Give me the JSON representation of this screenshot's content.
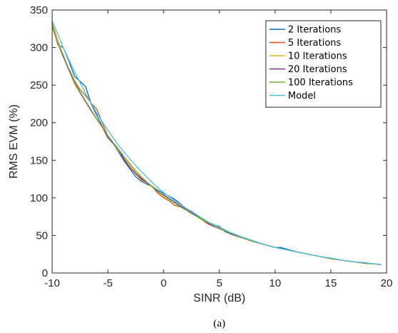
{
  "caption": "(a)",
  "chart_data": {
    "type": "line",
    "xlabel": "SINR (dB)",
    "ylabel": "RMS EVM (%)",
    "xlim": [
      -10,
      20
    ],
    "ylim": [
      0,
      350
    ],
    "xticks": [
      -10,
      -5,
      0,
      5,
      10,
      15,
      20
    ],
    "yticks": [
      0,
      50,
      100,
      150,
      200,
      250,
      300,
      350
    ],
    "xtick_labels": [
      "-10",
      "-5",
      "0",
      "5",
      "10",
      "15",
      "20"
    ],
    "ytick_labels": [
      "0",
      "50",
      "100",
      "150",
      "200",
      "250",
      "300",
      "350"
    ],
    "grid": false,
    "legend_position": "top-right",
    "series": [
      {
        "name": "2 Iterations",
        "color": "#0072BD",
        "x": [
          -10,
          -9.5,
          -9,
          -8.5,
          -8,
          -7.5,
          -7,
          -6.5,
          -6,
          -5.5,
          -5,
          -4.5,
          -4,
          -3.5,
          -3,
          -2.5,
          -2,
          -1.5,
          -1,
          -0.5,
          0,
          0.5,
          1,
          1.5,
          2,
          2.5,
          3,
          3.5,
          4,
          4.5,
          5,
          5.5,
          6,
          7,
          8,
          9,
          10,
          10.5,
          11,
          12,
          13,
          14,
          15,
          16,
          17,
          18,
          19,
          19.5
        ],
        "y": [
          332,
          304,
          300,
          282,
          262,
          255,
          248,
          225,
          210,
          195,
          180,
          172,
          160,
          148,
          138,
          128,
          122,
          118,
          115,
          110,
          106,
          102,
          98,
          92,
          86,
          82,
          77,
          72,
          66,
          64,
          62,
          55,
          52,
          48,
          43,
          38,
          34,
          34,
          32,
          28,
          25,
          22,
          19,
          17,
          15,
          13,
          12,
          11
        ]
      },
      {
        "name": "5 Iterations",
        "color": "#D95319",
        "x": [
          -10,
          -9.5,
          -9,
          -8.5,
          -8,
          -7.5,
          -7,
          -6.5,
          -6,
          -5.5,
          -5,
          -4.5,
          -4,
          -3.5,
          -3,
          -2.5,
          -2,
          -1.5,
          -1,
          -0.5,
          0,
          0.5,
          1,
          1.5,
          2,
          2.5,
          3,
          3.5,
          4,
          4.5,
          5,
          5.5,
          6,
          7,
          8,
          9,
          10,
          11,
          12,
          13,
          14,
          15,
          16,
          17,
          18,
          19,
          19.5
        ],
        "y": [
          328,
          306,
          288,
          272,
          256,
          244,
          236,
          226,
          218,
          200,
          182,
          172,
          162,
          150,
          140,
          132,
          124,
          120,
          114,
          106,
          100,
          96,
          90,
          88,
          84,
          80,
          75,
          70,
          65,
          62,
          60,
          56,
          52,
          47,
          42,
          38,
          34,
          31,
          28,
          25,
          22,
          19,
          17,
          15,
          13,
          12,
          11
        ]
      },
      {
        "name": "10 Iterations",
        "color": "#EDB120",
        "x": [
          -10,
          -9.5,
          -9,
          -8.5,
          -8,
          -7.5,
          -7,
          -6.5,
          -6,
          -5.5,
          -5,
          -4.5,
          -4,
          -3.5,
          -3,
          -2.5,
          -2,
          -1.5,
          -1,
          -0.5,
          0,
          0.5,
          1,
          1.5,
          2,
          2.5,
          3,
          3.5,
          4,
          4.5,
          5,
          5.5,
          6,
          7,
          8,
          9,
          10,
          11,
          12,
          13,
          14,
          15,
          16,
          17,
          18,
          19,
          19.5
        ],
        "y": [
          334,
          310,
          290,
          270,
          252,
          240,
          228,
          216,
          204,
          194,
          182,
          172,
          162,
          152,
          143,
          134,
          126,
          120,
          114,
          108,
          102,
          98,
          94,
          89,
          84,
          80,
          75,
          70,
          66,
          62,
          59,
          56,
          52,
          47,
          42,
          38,
          34,
          31,
          28,
          25,
          22,
          19,
          17,
          15,
          13,
          12,
          11
        ]
      },
      {
        "name": "20 Iterations",
        "color": "#7E2F8E",
        "x": [
          -10,
          -9.5,
          -9,
          -8.5,
          -8,
          -7.5,
          -7,
          -6.5,
          -6,
          -5.5,
          -5,
          -4.5,
          -4,
          -3.5,
          -3,
          -2.5,
          -2,
          -1.5,
          -1,
          -0.5,
          0,
          0.5,
          1,
          1.5,
          2,
          2.5,
          3,
          3.5,
          4,
          4.5,
          5,
          5.5,
          6,
          7,
          8,
          9,
          10,
          11,
          12,
          13,
          14,
          15,
          16,
          17,
          18,
          19,
          19.5
        ],
        "y": [
          330,
          306,
          288,
          270,
          254,
          240,
          228,
          216,
          205,
          194,
          180,
          172,
          164,
          150,
          140,
          132,
          126,
          120,
          115,
          108,
          104,
          99,
          94,
          89,
          85,
          80,
          76,
          71,
          66,
          62,
          59,
          56,
          52,
          47,
          42,
          38,
          34,
          31,
          28,
          25,
          22,
          19,
          17,
          15,
          13,
          12,
          11
        ]
      },
      {
        "name": "100 Iterations",
        "color": "#77AC30",
        "x": [
          -10,
          -9.5,
          -9,
          -8.5,
          -8,
          -7.5,
          -7,
          -6.5,
          -6,
          -5.5,
          -5,
          -4.5,
          -4,
          -3.5,
          -3,
          -2.5,
          -2,
          -1.5,
          -1,
          -0.5,
          0,
          0.5,
          1,
          1.5,
          2,
          2.5,
          3,
          3.5,
          4,
          4.5,
          5,
          5.5,
          6,
          7,
          8,
          9,
          10,
          11,
          12,
          13,
          14,
          15,
          16,
          17,
          18,
          19,
          19.5
        ],
        "y": [
          330,
          306,
          290,
          271,
          255,
          241,
          229,
          217,
          205,
          194,
          183,
          173,
          164,
          154,
          145,
          136,
          128,
          121,
          115,
          109,
          103,
          98,
          93,
          88,
          84,
          79,
          75,
          71,
          67,
          63,
          59,
          56,
          53,
          47,
          42,
          38,
          34,
          31,
          28,
          25,
          22,
          19,
          17,
          15,
          13,
          12,
          11
        ]
      },
      {
        "name": "Model",
        "color": "#4DBEEE",
        "x": [
          -10,
          -9,
          -8,
          -7,
          -6,
          -5,
          -4,
          -3,
          -2,
          -1,
          0,
          1,
          2,
          3,
          4,
          5,
          6,
          7,
          8,
          9,
          10,
          11,
          12,
          13,
          14,
          15,
          16,
          17,
          18,
          19,
          19.5
        ],
        "y": [
          336,
          300,
          268,
          239,
          213,
          190,
          169,
          151,
          135,
          120,
          107,
          96,
          86,
          77,
          68,
          61,
          54,
          48,
          43,
          38,
          34,
          31,
          28,
          25,
          22,
          20,
          17,
          15,
          14,
          12,
          11
        ]
      }
    ]
  }
}
